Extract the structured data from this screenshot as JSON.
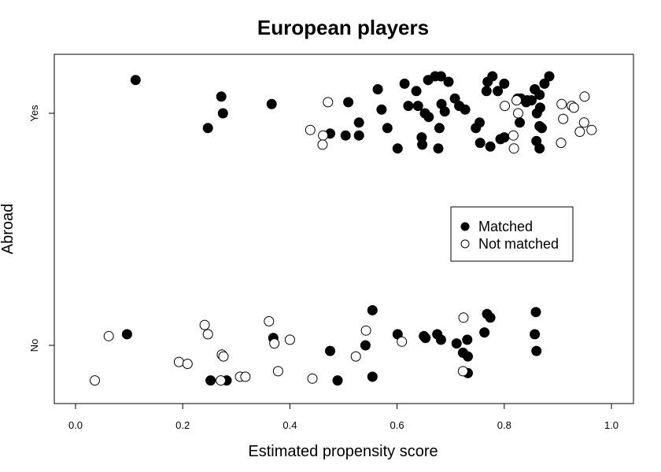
{
  "chart_data": {
    "type": "scatter",
    "title": "European players",
    "xlabel": "Estimated propensity score",
    "ylabel": "Abroad",
    "xlim": [
      0,
      1
    ],
    "x_ticks": [
      "0.0",
      "0.2",
      "0.4",
      "0.6",
      "0.8",
      "1.0"
    ],
    "y_categories": [
      "No",
      "Yes"
    ],
    "legend": {
      "position": "right-center",
      "entries": [
        {
          "label": "Matched",
          "marker": "filled-circle"
        },
        {
          "label": "Not matched",
          "marker": "open-circle"
        }
      ]
    },
    "colors": {
      "marker": "#000000",
      "open_fill": "#ffffff"
    },
    "series": [
      {
        "name": "Matched",
        "points": [
          {
            "x": 0.112,
            "y": "Yes",
            "jitter": 0.18
          },
          {
            "x": 0.272,
            "y": "Yes",
            "jitter": 0.09
          },
          {
            "x": 0.275,
            "y": "Yes",
            "jitter": 0.0
          },
          {
            "x": 0.247,
            "y": "Yes",
            "jitter": -0.08
          },
          {
            "x": 0.366,
            "y": "Yes",
            "jitter": 0.05
          },
          {
            "x": 0.475,
            "y": "Yes",
            "jitter": -0.11
          },
          {
            "x": 0.504,
            "y": "Yes",
            "jitter": -0.12
          },
          {
            "x": 0.509,
            "y": "Yes",
            "jitter": 0.06
          },
          {
            "x": 0.529,
            "y": "Yes",
            "jitter": -0.05
          },
          {
            "x": 0.529,
            "y": "Yes",
            "jitter": -0.12
          },
          {
            "x": 0.564,
            "y": "Yes",
            "jitter": 0.13
          },
          {
            "x": 0.571,
            "y": "Yes",
            "jitter": 0.02
          },
          {
            "x": 0.582,
            "y": "Yes",
            "jitter": -0.08
          },
          {
            "x": 0.601,
            "y": "Yes",
            "jitter": -0.19
          },
          {
            "x": 0.614,
            "y": "Yes",
            "jitter": 0.16
          },
          {
            "x": 0.621,
            "y": "Yes",
            "jitter": 0.04
          },
          {
            "x": 0.636,
            "y": "Yes",
            "jitter": 0.12
          },
          {
            "x": 0.639,
            "y": "Yes",
            "jitter": 0.04
          },
          {
            "x": 0.646,
            "y": "Yes",
            "jitter": -0.13
          },
          {
            "x": 0.647,
            "y": "Yes",
            "jitter": -0.17
          },
          {
            "x": 0.652,
            "y": "Yes",
            "jitter": 0.0
          },
          {
            "x": 0.658,
            "y": "Yes",
            "jitter": 0.18
          },
          {
            "x": 0.659,
            "y": "Yes",
            "jitter": -0.02
          },
          {
            "x": 0.671,
            "y": "Yes",
            "jitter": 0.2
          },
          {
            "x": 0.677,
            "y": "Yes",
            "jitter": -0.19
          },
          {
            "x": 0.679,
            "y": "Yes",
            "jitter": -0.08
          },
          {
            "x": 0.682,
            "y": "Yes",
            "jitter": 0.2
          },
          {
            "x": 0.683,
            "y": "Yes",
            "jitter": 0.05
          },
          {
            "x": 0.689,
            "y": "Yes",
            "jitter": 0.01
          },
          {
            "x": 0.696,
            "y": "Yes",
            "jitter": 0.17
          },
          {
            "x": 0.708,
            "y": "Yes",
            "jitter": 0.08
          },
          {
            "x": 0.716,
            "y": "Yes",
            "jitter": 0.04
          },
          {
            "x": 0.727,
            "y": "Yes",
            "jitter": 0.02
          },
          {
            "x": 0.747,
            "y": "Yes",
            "jitter": -0.08
          },
          {
            "x": 0.754,
            "y": "Yes",
            "jitter": -0.05
          },
          {
            "x": 0.755,
            "y": "Yes",
            "jitter": -0.16
          },
          {
            "x": 0.767,
            "y": "Yes",
            "jitter": 0.12
          },
          {
            "x": 0.769,
            "y": "Yes",
            "jitter": 0.17
          },
          {
            "x": 0.774,
            "y": "Yes",
            "jitter": -0.18
          },
          {
            "x": 0.778,
            "y": "Yes",
            "jitter": 0.2
          },
          {
            "x": 0.788,
            "y": "Yes",
            "jitter": 0.12
          },
          {
            "x": 0.793,
            "y": "Yes",
            "jitter": -0.14
          },
          {
            "x": 0.8,
            "y": "Yes",
            "jitter": 0.16
          },
          {
            "x": 0.8,
            "y": "Yes",
            "jitter": -0.13
          },
          {
            "x": 0.825,
            "y": "Yes",
            "jitter": 0.08
          },
          {
            "x": 0.829,
            "y": "Yes",
            "jitter": -0.05
          },
          {
            "x": 0.831,
            "y": "Yes",
            "jitter": 0.08
          },
          {
            "x": 0.841,
            "y": "Yes",
            "jitter": 0.06
          },
          {
            "x": 0.843,
            "y": "Yes",
            "jitter": 0.07
          },
          {
            "x": 0.851,
            "y": "Yes",
            "jitter": 0.07
          },
          {
            "x": 0.857,
            "y": "Yes",
            "jitter": 0.13
          },
          {
            "x": 0.86,
            "y": "Yes",
            "jitter": -0.15
          },
          {
            "x": 0.861,
            "y": "Yes",
            "jitter": 0.0
          },
          {
            "x": 0.866,
            "y": "Yes",
            "jitter": 0.1
          },
          {
            "x": 0.866,
            "y": "Yes",
            "jitter": -0.07
          },
          {
            "x": 0.866,
            "y": "Yes",
            "jitter": -0.19
          },
          {
            "x": 0.867,
            "y": "Yes",
            "jitter": 0.03
          },
          {
            "x": 0.87,
            "y": "Yes",
            "jitter": -0.08
          },
          {
            "x": 0.875,
            "y": "Yes",
            "jitter": 0.16
          },
          {
            "x": 0.884,
            "y": "Yes",
            "jitter": 0.2
          },
          {
            "x": 0.096,
            "y": "No",
            "jitter": 0.06
          },
          {
            "x": 0.252,
            "y": "No",
            "jitter": -0.19
          },
          {
            "x": 0.282,
            "y": "No",
            "jitter": -0.19
          },
          {
            "x": 0.369,
            "y": "No",
            "jitter": 0.04
          },
          {
            "x": 0.475,
            "y": "No",
            "jitter": -0.03
          },
          {
            "x": 0.489,
            "y": "No",
            "jitter": -0.19
          },
          {
            "x": 0.541,
            "y": "No",
            "jitter": 0.0
          },
          {
            "x": 0.554,
            "y": "No",
            "jitter": 0.19
          },
          {
            "x": 0.554,
            "y": "No",
            "jitter": -0.17
          },
          {
            "x": 0.601,
            "y": "No",
            "jitter": 0.06
          },
          {
            "x": 0.65,
            "y": "No",
            "jitter": 0.05
          },
          {
            "x": 0.653,
            "y": "No",
            "jitter": 0.04
          },
          {
            "x": 0.675,
            "y": "No",
            "jitter": 0.06
          },
          {
            "x": 0.682,
            "y": "No",
            "jitter": 0.03
          },
          {
            "x": 0.711,
            "y": "No",
            "jitter": 0.01
          },
          {
            "x": 0.723,
            "y": "No",
            "jitter": -0.04
          },
          {
            "x": 0.731,
            "y": "No",
            "jitter": 0.03
          },
          {
            "x": 0.732,
            "y": "No",
            "jitter": -0.06
          },
          {
            "x": 0.732,
            "y": "No",
            "jitter": -0.15
          },
          {
            "x": 0.763,
            "y": "No",
            "jitter": 0.07
          },
          {
            "x": 0.768,
            "y": "No",
            "jitter": 0.17
          },
          {
            "x": 0.774,
            "y": "No",
            "jitter": 0.15
          },
          {
            "x": 0.857,
            "y": "No",
            "jitter": 0.06
          },
          {
            "x": 0.859,
            "y": "No",
            "jitter": 0.18
          },
          {
            "x": 0.86,
            "y": "No",
            "jitter": -0.03
          }
        ]
      },
      {
        "name": "Not matched",
        "points": [
          {
            "x": 0.471,
            "y": "Yes",
            "jitter": 0.06
          },
          {
            "x": 0.438,
            "y": "Yes",
            "jitter": -0.09
          },
          {
            "x": 0.462,
            "y": "Yes",
            "jitter": -0.12
          },
          {
            "x": 0.461,
            "y": "Yes",
            "jitter": -0.17
          },
          {
            "x": 0.801,
            "y": "Yes",
            "jitter": 0.04
          },
          {
            "x": 0.823,
            "y": "Yes",
            "jitter": 0.07
          },
          {
            "x": 0.826,
            "y": "Yes",
            "jitter": 0.0
          },
          {
            "x": 0.817,
            "y": "Yes",
            "jitter": -0.12
          },
          {
            "x": 0.818,
            "y": "Yes",
            "jitter": -0.19
          },
          {
            "x": 0.907,
            "y": "Yes",
            "jitter": 0.05
          },
          {
            "x": 0.926,
            "y": "Yes",
            "jitter": 0.04
          },
          {
            "x": 0.93,
            "y": "Yes",
            "jitter": 0.03
          },
          {
            "x": 0.95,
            "y": "Yes",
            "jitter": 0.09
          },
          {
            "x": 0.91,
            "y": "Yes",
            "jitter": -0.03
          },
          {
            "x": 0.949,
            "y": "Yes",
            "jitter": -0.05
          },
          {
            "x": 0.963,
            "y": "Yes",
            "jitter": -0.09
          },
          {
            "x": 0.941,
            "y": "Yes",
            "jitter": -0.1
          },
          {
            "x": 0.906,
            "y": "Yes",
            "jitter": -0.16
          },
          {
            "x": 0.036,
            "y": "No",
            "jitter": -0.19
          },
          {
            "x": 0.062,
            "y": "No",
            "jitter": 0.05
          },
          {
            "x": 0.193,
            "y": "No",
            "jitter": -0.09
          },
          {
            "x": 0.209,
            "y": "No",
            "jitter": -0.1
          },
          {
            "x": 0.241,
            "y": "No",
            "jitter": 0.11
          },
          {
            "x": 0.247,
            "y": "No",
            "jitter": 0.06
          },
          {
            "x": 0.273,
            "y": "No",
            "jitter": -0.05
          },
          {
            "x": 0.276,
            "y": "No",
            "jitter": -0.06
          },
          {
            "x": 0.271,
            "y": "No",
            "jitter": -0.19
          },
          {
            "x": 0.307,
            "y": "No",
            "jitter": -0.17
          },
          {
            "x": 0.317,
            "y": "No",
            "jitter": -0.17
          },
          {
            "x": 0.361,
            "y": "No",
            "jitter": 0.13
          },
          {
            "x": 0.371,
            "y": "No",
            "jitter": 0.01
          },
          {
            "x": 0.378,
            "y": "No",
            "jitter": -0.14
          },
          {
            "x": 0.4,
            "y": "No",
            "jitter": 0.03
          },
          {
            "x": 0.442,
            "y": "No",
            "jitter": -0.18
          },
          {
            "x": 0.523,
            "y": "No",
            "jitter": -0.06
          },
          {
            "x": 0.542,
            "y": "No",
            "jitter": 0.08
          },
          {
            "x": 0.609,
            "y": "No",
            "jitter": 0.02
          },
          {
            "x": 0.724,
            "y": "No",
            "jitter": 0.15
          },
          {
            "x": 0.723,
            "y": "No",
            "jitter": -0.14
          }
        ]
      }
    ]
  }
}
